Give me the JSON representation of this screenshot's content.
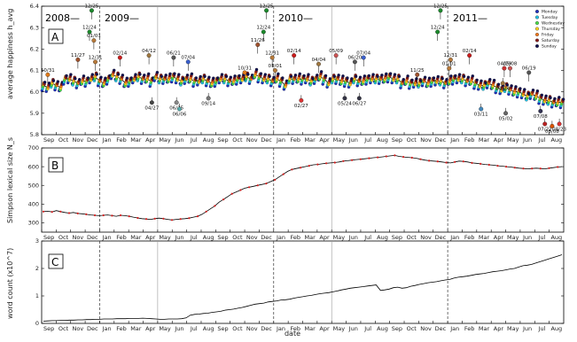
{
  "chart_data": [
    {
      "type": "line",
      "panel_label": "A",
      "ylabel": "average happiness h_avg",
      "ylim": [
        5.8,
        6.4
      ],
      "yticks": [
        "5.8",
        "5.9",
        "6.0",
        "6.1",
        "6.2",
        "6.3",
        "6.4"
      ],
      "year_labels": [
        "2008—",
        "2009—",
        "2010—",
        "2011—"
      ],
      "legend": [
        "Monday",
        "Tuesday",
        "Wednesday",
        "Thursday",
        "Friday",
        "Saturday",
        "Sunday"
      ],
      "day_colors": [
        "#1f2fbf",
        "#22c4e6",
        "#47e047",
        "#ffd21f",
        "#ff7a1a",
        "#8b1a1a",
        "#101050"
      ],
      "weekly_means": [
        6.03,
        6.02,
        6.04,
        6.03,
        6.02,
        6.06,
        6.06,
        6.05,
        6.04,
        6.05,
        6.05,
        6.06,
        6.07,
        6.05,
        6.04,
        6.06,
        6.08,
        6.07,
        6.06,
        6.04,
        6.05,
        6.06,
        6.07,
        6.06,
        6.06,
        6.05,
        6.07,
        6.06,
        6.06,
        6.06,
        6.07,
        6.06,
        6.05,
        6.06,
        6.06,
        6.05,
        6.05,
        6.06,
        6.05,
        6.04,
        6.05,
        6.06,
        6.06,
        6.05,
        6.05,
        6.06,
        6.06,
        6.07,
        6.06,
        6.08,
        6.07,
        6.06,
        6.06,
        6.05,
        6.06,
        6.05,
        6.03,
        6.06,
        6.06,
        6.06,
        6.06,
        6.06,
        6.05,
        6.06,
        6.07,
        6.06,
        6.04,
        6.06,
        6.06,
        6.05,
        6.05,
        6.04,
        6.06,
        6.05,
        6.05,
        6.06,
        6.06,
        6.06,
        6.06,
        6.06,
        6.07,
        6.06,
        6.06,
        6.04,
        6.05,
        6.04,
        6.04,
        6.04,
        6.05,
        6.04,
        6.05,
        6.05,
        6.05,
        6.04,
        6.05,
        6.06,
        6.06,
        6.06,
        6.05,
        6.05,
        6.04,
        6.03,
        6.03,
        6.04,
        6.03,
        6.02,
        6.01,
        6.02,
        6.01,
        6.0,
        6.0,
        5.99,
        5.98,
        5.99,
        5.98,
        5.97,
        5.96,
        5.96,
        5.95,
        5.95,
        5.95
      ],
      "events": [
        {
          "label": "10/31",
          "value": 6.08,
          "icon": "pumpkin"
        },
        {
          "label": "11/27",
          "value": 6.15,
          "icon": "turkey"
        },
        {
          "label": "12/25",
          "value": 6.38,
          "icon": "tree"
        },
        {
          "label": "12/24",
          "value": 6.28,
          "icon": "tree"
        },
        {
          "label": "01/01",
          "value": 6.24,
          "icon": "champagne"
        },
        {
          "label": "12/31",
          "value": 6.14,
          "icon": "champagne"
        },
        {
          "label": "02/14",
          "value": 6.16,
          "icon": "heart"
        },
        {
          "label": "04/12",
          "value": 6.17,
          "icon": "bunny"
        },
        {
          "label": "04/27",
          "value": 5.95,
          "icon": "biohazard"
        },
        {
          "label": "06/25",
          "value": 5.95,
          "icon": "glove"
        },
        {
          "label": "06/21",
          "value": 6.16,
          "icon": "dad"
        },
        {
          "label": "07/04",
          "value": 6.14,
          "icon": "flag"
        },
        {
          "label": "06/06",
          "value": 5.92,
          "icon": "photo"
        },
        {
          "label": "09/14",
          "value": 5.97,
          "icon": "mic"
        },
        {
          "label": "10/31",
          "value": 6.09,
          "icon": "pumpkin"
        },
        {
          "label": "11/26",
          "value": 6.22,
          "icon": "turkey"
        },
        {
          "label": "12/25",
          "value": 6.38,
          "icon": "tree"
        },
        {
          "label": "12/24",
          "value": 6.28,
          "icon": "tree"
        },
        {
          "label": "01/01",
          "value": 6.1,
          "icon": "champagne"
        },
        {
          "label": "12/31",
          "value": 6.16,
          "icon": "champagne"
        },
        {
          "label": "02/14",
          "value": 6.17,
          "icon": "heart"
        },
        {
          "label": "02/27",
          "value": 5.96,
          "icon": "target"
        },
        {
          "label": "04/04",
          "value": 6.13,
          "icon": "bunny"
        },
        {
          "label": "05/09",
          "value": 6.17,
          "icon": "mom"
        },
        {
          "label": "05/24",
          "value": 5.97,
          "icon": "tv"
        },
        {
          "label": "06/20",
          "value": 6.14,
          "icon": "dad"
        },
        {
          "label": "06/27",
          "value": 5.97,
          "icon": "tv"
        },
        {
          "label": "07/04",
          "value": 6.16,
          "icon": "flag"
        },
        {
          "label": "11/25",
          "value": 6.08,
          "icon": "turkey"
        },
        {
          "label": "12/25",
          "value": 6.38,
          "icon": "tree"
        },
        {
          "label": "12/24",
          "value": 6.28,
          "icon": "tree"
        },
        {
          "label": "12/31",
          "value": 6.15,
          "icon": "champagne"
        },
        {
          "label": "01/01",
          "value": 6.11,
          "icon": "champagne"
        },
        {
          "label": "02/14",
          "value": 6.17,
          "icon": "heart"
        },
        {
          "label": "03/11",
          "value": 5.92,
          "icon": "wave"
        },
        {
          "label": "04/24",
          "value": 6.04,
          "icon": "bunny"
        },
        {
          "label": "04/29",
          "value": 6.11,
          "icon": "rings"
        },
        {
          "label": "05/02",
          "value": 5.9,
          "icon": "osama"
        },
        {
          "label": "05/08",
          "value": 6.11,
          "icon": "mom"
        },
        {
          "label": "06/19",
          "value": 6.09,
          "icon": "dad"
        },
        {
          "label": "07/08",
          "value": 5.91,
          "icon": "shuttle"
        },
        {
          "label": "07/22",
          "value": 5.85,
          "icon": "norway"
        },
        {
          "label": "08/08",
          "value": 5.84,
          "icon": "fire"
        },
        {
          "label": "08/23",
          "value": 5.85,
          "icon": "target"
        }
      ]
    },
    {
      "type": "line",
      "panel_label": "B",
      "ylabel": "Simpson lexical size N_s",
      "ylim": [
        250,
        700
      ],
      "yticks": [
        "300",
        "400",
        "500",
        "600",
        "700"
      ],
      "weekly_means": [
        360,
        362,
        358,
        365,
        360,
        355,
        352,
        355,
        350,
        348,
        345,
        342,
        340,
        338,
        340,
        342,
        338,
        335,
        340,
        338,
        335,
        330,
        326,
        322,
        320,
        318,
        322,
        325,
        322,
        318,
        315,
        318,
        320,
        322,
        325,
        330,
        335,
        345,
        360,
        375,
        390,
        410,
        425,
        440,
        455,
        465,
        475,
        485,
        490,
        495,
        500,
        505,
        510,
        520,
        530,
        545,
        560,
        575,
        585,
        590,
        595,
        600,
        605,
        610,
        612,
        615,
        618,
        620,
        622,
        625,
        630,
        632,
        635,
        638,
        640,
        642,
        645,
        648,
        650,
        652,
        655,
        658,
        660,
        655,
        652,
        650,
        648,
        645,
        640,
        635,
        632,
        630,
        628,
        625,
        622,
        620,
        625,
        630,
        628,
        625,
        620,
        618,
        615,
        612,
        610,
        608,
        605,
        603,
        600,
        598,
        595,
        592,
        590,
        588,
        590,
        592,
        590,
        588,
        592,
        595,
        598,
        600
      ]
    },
    {
      "type": "line",
      "panel_label": "C",
      "ylabel": "word count (x10^7)",
      "ylim": [
        0,
        3
      ],
      "yticks": [
        "0",
        "1",
        "2",
        "3"
      ],
      "weekly_means": [
        0.08,
        0.09,
        0.1,
        0.1,
        0.11,
        0.11,
        0.12,
        0.12,
        0.13,
        0.13,
        0.14,
        0.14,
        0.15,
        0.15,
        0.16,
        0.16,
        0.16,
        0.17,
        0.17,
        0.17,
        0.18,
        0.18,
        0.18,
        0.19,
        0.18,
        0.17,
        0.16,
        0.15,
        0.15,
        0.16,
        0.16,
        0.16,
        0.17,
        0.2,
        0.3,
        0.33,
        0.34,
        0.36,
        0.37,
        0.4,
        0.42,
        0.44,
        0.48,
        0.5,
        0.52,
        0.55,
        0.58,
        0.62,
        0.66,
        0.7,
        0.72,
        0.74,
        0.78,
        0.8,
        0.82,
        0.85,
        0.86,
        0.88,
        0.92,
        0.95,
        0.97,
        1.0,
        1.02,
        1.05,
        1.08,
        1.1,
        1.12,
        1.15,
        1.18,
        1.22,
        1.25,
        1.28,
        1.3,
        1.32,
        1.34,
        1.36,
        1.38,
        1.4,
        1.2,
        1.22,
        1.25,
        1.3,
        1.32,
        1.28,
        1.3,
        1.35,
        1.38,
        1.42,
        1.45,
        1.48,
        1.5,
        1.52,
        1.55,
        1.58,
        1.6,
        1.65,
        1.68,
        1.7,
        1.72,
        1.75,
        1.78,
        1.8,
        1.82,
        1.85,
        1.88,
        1.9,
        1.92,
        1.95,
        1.98,
        2.0,
        2.05,
        2.1,
        2.12,
        2.15,
        2.2,
        2.25,
        2.3,
        2.35,
        2.4,
        2.45,
        2.5
      ]
    }
  ],
  "x_axis": {
    "months": [
      "Sep",
      "Oct",
      "Nov",
      "Dec",
      "Jan",
      "Feb",
      "Mar",
      "Apr",
      "May",
      "Jun",
      "Jul",
      "Aug",
      "Sep",
      "Oct",
      "Nov",
      "Dec",
      "Jan",
      "Feb",
      "Mar",
      "Apr",
      "May",
      "Jun",
      "Jul",
      "Aug",
      "Sep",
      "Oct",
      "Nov",
      "Dec",
      "Jan",
      "Feb",
      "Mar",
      "Apr",
      "May",
      "Jun",
      "Jul",
      "Aug"
    ],
    "xlabel": "date"
  }
}
